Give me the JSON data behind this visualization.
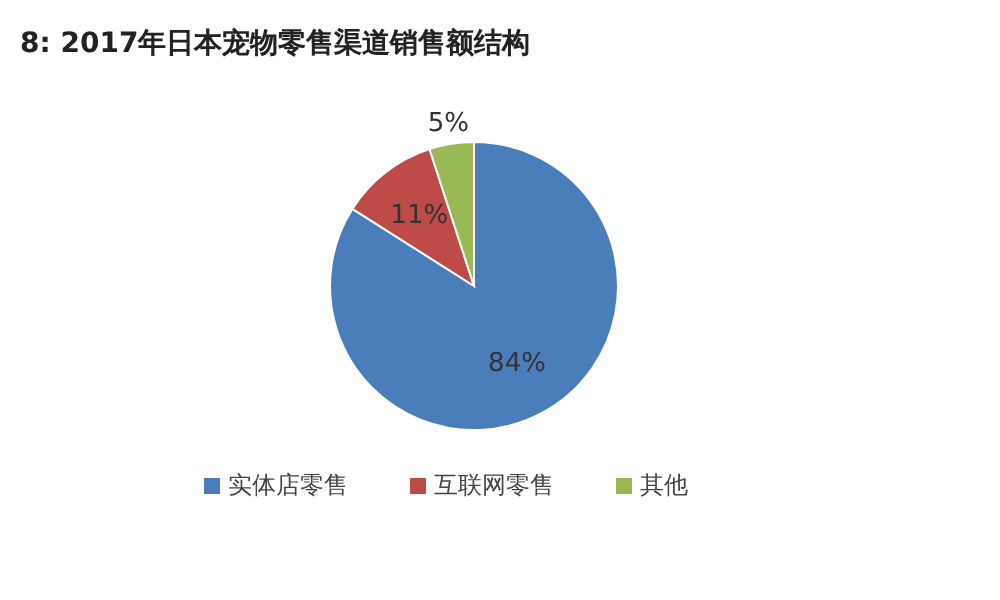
{
  "chart_data": {
    "type": "pie",
    "title": "8:  2017年日本宠物零售渠道销售额结构",
    "categories": [
      "实体店零售",
      "互联网零售",
      "其他"
    ],
    "values": [
      84,
      11,
      5
    ],
    "colors": [
      "#4a7ebb",
      "#be4b48",
      "#98b954"
    ],
    "value_labels": [
      "84%",
      "11%",
      "5%"
    ],
    "legend": "bottom"
  }
}
